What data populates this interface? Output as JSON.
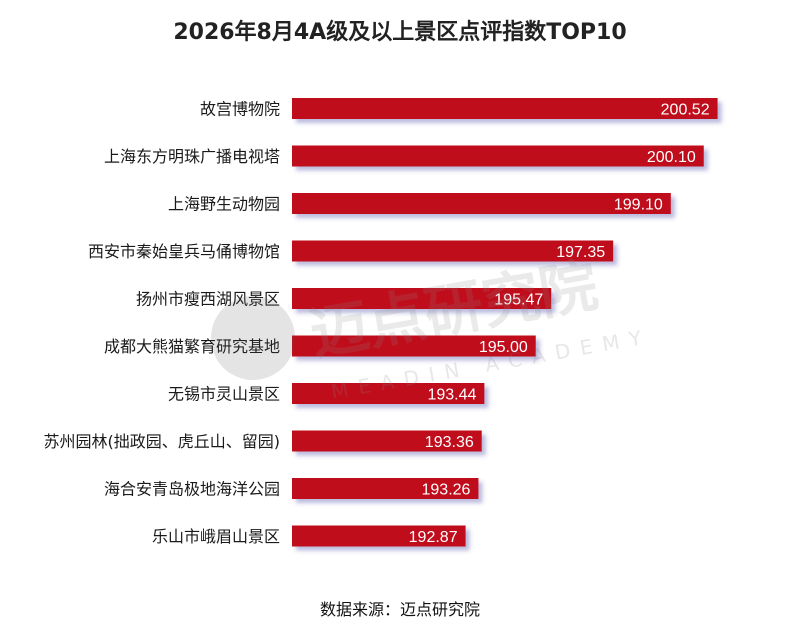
{
  "chart_data": {
    "type": "bar",
    "orientation": "horizontal",
    "title": "2026年8月4A级及以上景区点评指数TOP10",
    "categories": [
      "故宫博物院",
      "上海东方明珠广播电视塔",
      "上海野生动物园",
      "西安市秦始皇兵马俑博物馆",
      "扬州市瘦西湖风景区",
      "成都大熊猫繁育研究基地",
      "无锡市灵山景区",
      "苏州园林(拙政园、虎丘山、留园)",
      "海合安青岛极地海洋公园",
      "乐山市峨眉山景区"
    ],
    "values": [
      200.52,
      200.1,
      199.1,
      197.35,
      195.47,
      195.0,
      193.44,
      193.36,
      193.26,
      192.87
    ],
    "value_labels": [
      "200.52",
      "200.10",
      "199.10",
      "197.35",
      "195.47",
      "195.00",
      "193.44",
      "193.36",
      "193.26",
      "192.87"
    ],
    "xlim": [
      187.6,
      201.2
    ],
    "bar_color": "#c0101c",
    "grid": false,
    "legend": "none"
  },
  "watermark": {
    "cn": "迈点研究院",
    "en": "MEADIN ACADEMY"
  },
  "source": "数据来源：迈点研究院"
}
